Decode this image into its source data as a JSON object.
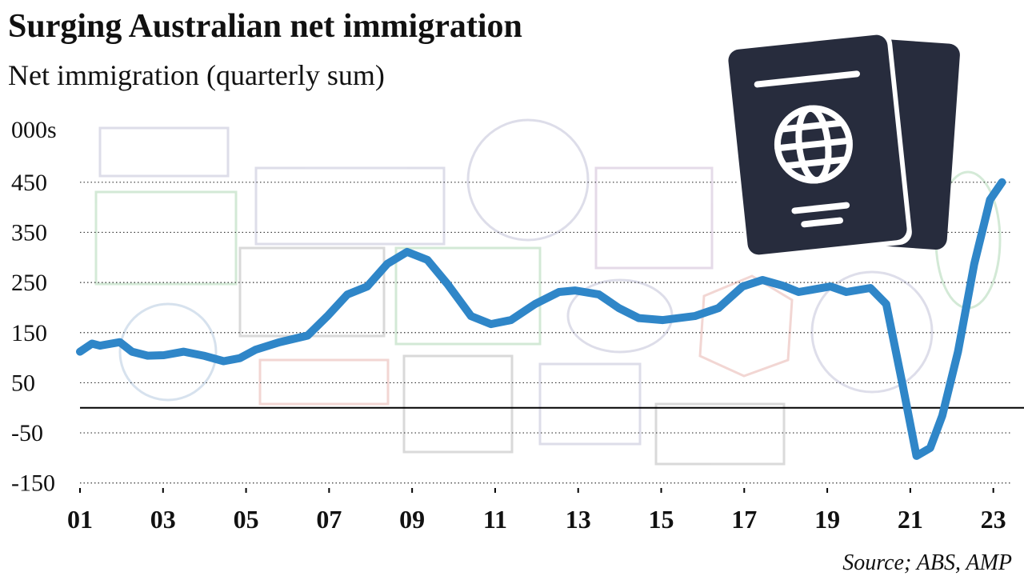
{
  "chart_data": {
    "type": "line",
    "title": "Surging Australian net immigration",
    "subtitle": "Net immigration (quarterly sum)",
    "y_unit": "000s",
    "source": "Source; ABS, AMP",
    "color": "#2f86c8",
    "grid": true,
    "zero_line": true,
    "xlim": [
      1,
      23.45
    ],
    "ylim": [
      -160,
      480
    ],
    "xticks": [
      {
        "value": 1,
        "label": "01"
      },
      {
        "value": 3,
        "label": "03"
      },
      {
        "value": 5,
        "label": "05"
      },
      {
        "value": 7,
        "label": "07"
      },
      {
        "value": 9,
        "label": "09"
      },
      {
        "value": 11,
        "label": "11"
      },
      {
        "value": 13,
        "label": "13"
      },
      {
        "value": 15,
        "label": "15"
      },
      {
        "value": 17,
        "label": "17"
      },
      {
        "value": 19,
        "label": "19"
      },
      {
        "value": 21,
        "label": "21"
      },
      {
        "value": 23,
        "label": "23"
      }
    ],
    "yticks": [
      450,
      350,
      250,
      150,
      50,
      -50,
      -150
    ],
    "x": [
      1.0,
      1.29,
      1.48,
      1.96,
      2.25,
      2.63,
      3.02,
      3.5,
      3.98,
      4.46,
      4.85,
      5.23,
      5.81,
      6.48,
      6.96,
      7.44,
      7.92,
      8.4,
      8.88,
      9.37,
      9.85,
      10.42,
      10.9,
      11.38,
      11.96,
      12.54,
      12.92,
      13.5,
      13.98,
      14.46,
      15.04,
      15.81,
      16.38,
      16.96,
      17.44,
      17.92,
      18.31,
      19.08,
      19.46,
      20.04,
      20.42,
      20.81,
      21.15,
      21.48,
      21.77,
      22.15,
      22.54,
      22.92,
      23.21
    ],
    "values": [
      112,
      128,
      124,
      131,
      112,
      104,
      105,
      112,
      104,
      93,
      99,
      116,
      131,
      144,
      183,
      226,
      242,
      287,
      311,
      295,
      247,
      183,
      167,
      175,
      207,
      231,
      234,
      226,
      199,
      179,
      175,
      183,
      199,
      242,
      255,
      244,
      231,
      242,
      231,
      239,
      207,
      48,
      -96,
      -80,
      -16,
      112,
      287,
      415,
      450
    ]
  }
}
